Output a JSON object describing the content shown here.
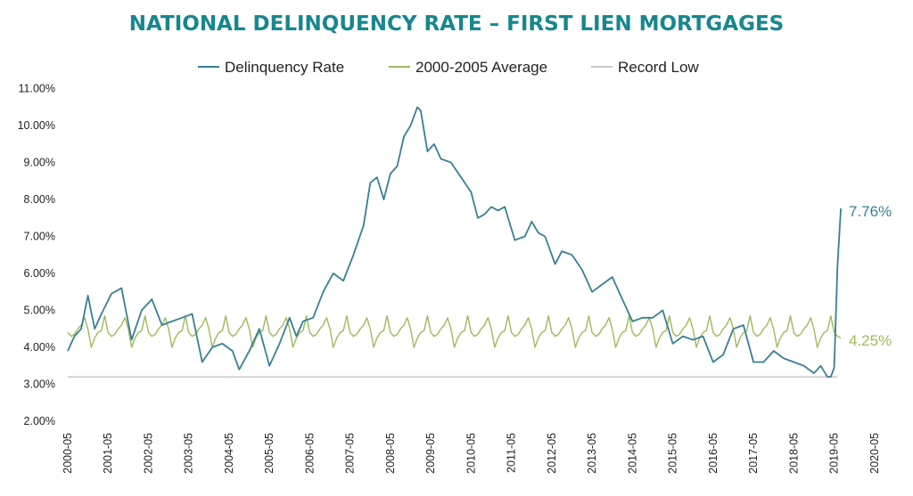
{
  "chart_data": {
    "type": "line",
    "title": "NATIONAL DELINQUENCY RATE – FIRST LIEN MORTGAGES",
    "xlabel": "",
    "ylabel": "",
    "ylim": [
      2.0,
      11.0
    ],
    "yticks": [
      "2.00%",
      "3.00%",
      "4.00%",
      "5.00%",
      "6.00%",
      "7.00%",
      "8.00%",
      "9.00%",
      "10.00%",
      "11.00%"
    ],
    "xticks": [
      "2000-05",
      "2001-05",
      "2002-05",
      "2003-05",
      "2004-05",
      "2005-05",
      "2006-05",
      "2007-05",
      "2008-05",
      "2009-05",
      "2010-05",
      "2011-05",
      "2012-05",
      "2013-05",
      "2014-05",
      "2015-05",
      "2016-05",
      "2017-05",
      "2018-05",
      "2019-05",
      "2020-05"
    ],
    "grid": false,
    "legend": "top",
    "colors": {
      "delinquency": "#3a7f93",
      "average": "#9dbb5b",
      "record_low": "#c8c8c8",
      "title": "#17868f"
    },
    "record_low_value": 3.2,
    "series": [
      {
        "name": "Delinquency Rate",
        "anchors": [
          [
            0,
            3.9
          ],
          [
            2,
            4.3
          ],
          [
            4,
            4.5
          ],
          [
            6,
            5.4
          ],
          [
            8,
            4.5
          ],
          [
            10,
            4.9
          ],
          [
            13,
            5.45
          ],
          [
            16,
            5.6
          ],
          [
            19,
            4.2
          ],
          [
            22,
            5.0
          ],
          [
            25,
            5.3
          ],
          [
            28,
            4.6
          ],
          [
            31,
            4.7
          ],
          [
            34,
            4.8
          ],
          [
            37,
            4.9
          ],
          [
            40,
            3.6
          ],
          [
            43,
            4.0
          ],
          [
            46,
            4.1
          ],
          [
            49,
            3.9
          ],
          [
            51,
            3.4
          ],
          [
            54,
            3.9
          ],
          [
            57,
            4.5
          ],
          [
            60,
            3.5
          ],
          [
            63,
            4.1
          ],
          [
            66,
            4.8
          ],
          [
            68,
            4.3
          ],
          [
            70,
            4.7
          ],
          [
            73,
            4.8
          ],
          [
            76,
            5.5
          ],
          [
            79,
            6.0
          ],
          [
            82,
            5.8
          ],
          [
            85,
            6.5
          ],
          [
            88,
            7.3
          ],
          [
            90,
            8.45
          ],
          [
            92,
            8.6
          ],
          [
            94,
            8.0
          ],
          [
            96,
            8.7
          ],
          [
            98,
            8.9
          ],
          [
            100,
            9.7
          ],
          [
            102,
            10.0
          ],
          [
            104,
            10.5
          ],
          [
            105,
            10.4
          ],
          [
            107,
            9.3
          ],
          [
            109,
            9.5
          ],
          [
            111,
            9.1
          ],
          [
            114,
            9.0
          ],
          [
            117,
            8.6
          ],
          [
            120,
            8.2
          ],
          [
            122,
            7.5
          ],
          [
            124,
            7.6
          ],
          [
            126,
            7.8
          ],
          [
            128,
            7.7
          ],
          [
            130,
            7.8
          ],
          [
            133,
            6.9
          ],
          [
            136,
            7.0
          ],
          [
            138,
            7.4
          ],
          [
            140,
            7.1
          ],
          [
            142,
            7.0
          ],
          [
            145,
            6.25
          ],
          [
            147,
            6.6
          ],
          [
            150,
            6.5
          ],
          [
            153,
            6.1
          ],
          [
            156,
            5.5
          ],
          [
            159,
            5.7
          ],
          [
            162,
            5.9
          ],
          [
            165,
            5.3
          ],
          [
            168,
            4.7
          ],
          [
            171,
            4.8
          ],
          [
            174,
            4.8
          ],
          [
            177,
            5.0
          ],
          [
            180,
            4.1
          ],
          [
            183,
            4.3
          ],
          [
            186,
            4.2
          ],
          [
            189,
            4.3
          ],
          [
            192,
            3.6
          ],
          [
            195,
            3.8
          ],
          [
            198,
            4.5
          ],
          [
            201,
            4.6
          ],
          [
            204,
            3.6
          ],
          [
            207,
            3.6
          ],
          [
            210,
            3.9
          ],
          [
            213,
            3.7
          ],
          [
            216,
            3.6
          ],
          [
            219,
            3.5
          ],
          [
            222,
            3.3
          ],
          [
            224,
            3.5
          ],
          [
            226,
            3.2
          ],
          [
            227,
            3.2
          ],
          [
            228,
            3.45
          ],
          [
            229,
            6.2
          ],
          [
            230,
            7.76
          ]
        ]
      },
      {
        "name": "2000-2005 Average",
        "cycle": [
          4.4,
          4.3,
          4.35,
          4.5,
          4.6,
          4.8,
          4.5,
          4.0,
          4.25,
          4.4,
          4.45,
          4.85
        ],
        "final": 4.25
      },
      {
        "name": "Record Low",
        "value": 3.2
      }
    ],
    "end_labels": {
      "delinquency": "7.76%",
      "average": "4.25%"
    }
  }
}
